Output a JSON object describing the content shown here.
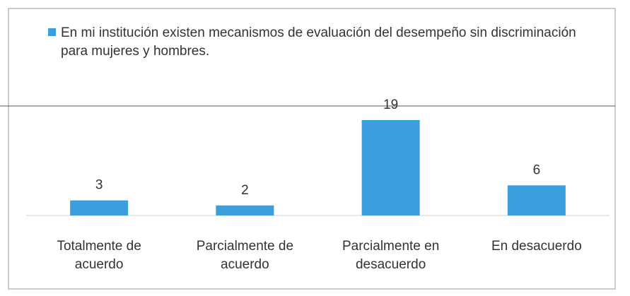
{
  "chart_data": {
    "type": "bar",
    "series": [
      {
        "name": "En mi institución existen mecanismos de evaluación del desempeño sin discriminación para mujeres y hombres.",
        "color": "#3a9fdc",
        "values": [
          3,
          2,
          19,
          6
        ]
      }
    ],
    "categories": [
      "Totalmente de acuerdo",
      "Parcialmente de acuerdo",
      "Parcialmente en desacuerdo",
      "En desacuerdo"
    ],
    "legend": "top"
  }
}
